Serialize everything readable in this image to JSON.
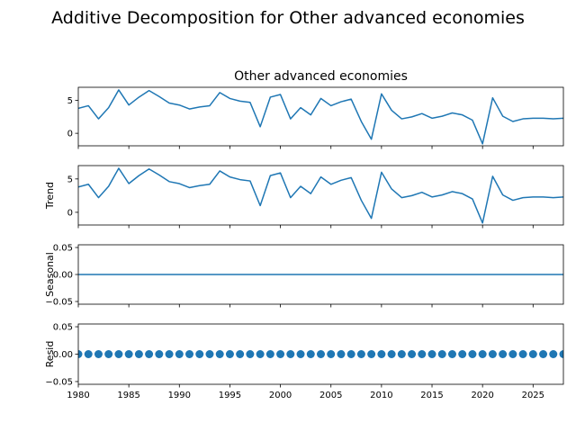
{
  "chart_data": {
    "type": "line",
    "title": "Additive Decomposition for Other advanced economies",
    "xlim": [
      1980,
      2028
    ],
    "x_ticks": [
      1980,
      1985,
      1990,
      1995,
      2000,
      2005,
      2010,
      2015,
      2020,
      2025
    ],
    "x": [
      1980,
      1981,
      1982,
      1983,
      1984,
      1985,
      1986,
      1987,
      1988,
      1989,
      1990,
      1991,
      1992,
      1993,
      1994,
      1995,
      1996,
      1997,
      1998,
      1999,
      2000,
      2001,
      2002,
      2003,
      2004,
      2005,
      2006,
      2007,
      2008,
      2009,
      2010,
      2011,
      2012,
      2013,
      2014,
      2015,
      2016,
      2017,
      2018,
      2019,
      2020,
      2021,
      2022,
      2023,
      2024,
      2025,
      2026,
      2027,
      2028
    ],
    "color": "#1f77b4",
    "panels": [
      {
        "title": "Other advanced economies",
        "ylabel": "",
        "ylim": [
          -1.9,
          7.0
        ],
        "y_ticks": [
          0,
          5
        ],
        "y_tick_labels": [
          "0",
          "5"
        ],
        "style": "line",
        "values": [
          3.8,
          4.2,
          2.2,
          3.9,
          6.6,
          4.3,
          5.5,
          6.5,
          5.6,
          4.6,
          4.3,
          3.7,
          4.0,
          4.2,
          6.2,
          5.3,
          4.9,
          4.7,
          1.0,
          5.5,
          5.9,
          2.2,
          3.9,
          2.8,
          5.3,
          4.2,
          4.8,
          5.2,
          1.8,
          -0.9,
          6.0,
          3.5,
          2.2,
          2.5,
          3.0,
          2.3,
          2.6,
          3.1,
          2.8,
          2.0,
          -1.6,
          5.4,
          2.6,
          1.8,
          2.2,
          2.3,
          2.3,
          2.2,
          2.3
        ]
      },
      {
        "title": "",
        "ylabel": "Trend",
        "ylim": [
          -1.9,
          7.0
        ],
        "y_ticks": [
          0,
          5
        ],
        "y_tick_labels": [
          "0",
          "5"
        ],
        "style": "line",
        "values": [
          3.8,
          4.2,
          2.2,
          3.9,
          6.6,
          4.3,
          5.5,
          6.5,
          5.6,
          4.6,
          4.3,
          3.7,
          4.0,
          4.2,
          6.2,
          5.3,
          4.9,
          4.7,
          1.0,
          5.5,
          5.9,
          2.2,
          3.9,
          2.8,
          5.3,
          4.2,
          4.8,
          5.2,
          1.8,
          -0.9,
          6.0,
          3.5,
          2.2,
          2.5,
          3.0,
          2.3,
          2.6,
          3.1,
          2.8,
          2.0,
          -1.6,
          5.4,
          2.6,
          1.8,
          2.2,
          2.3,
          2.3,
          2.2,
          2.3
        ]
      },
      {
        "title": "",
        "ylabel": "Seasonal",
        "ylim": [
          -0.055,
          0.055
        ],
        "y_ticks": [
          -0.05,
          0.0,
          0.05
        ],
        "y_tick_labels": [
          "−0.05",
          "0.00",
          "0.05"
        ],
        "style": "line",
        "values": [
          0,
          0,
          0,
          0,
          0,
          0,
          0,
          0,
          0,
          0,
          0,
          0,
          0,
          0,
          0,
          0,
          0,
          0,
          0,
          0,
          0,
          0,
          0,
          0,
          0,
          0,
          0,
          0,
          0,
          0,
          0,
          0,
          0,
          0,
          0,
          0,
          0,
          0,
          0,
          0,
          0,
          0,
          0,
          0,
          0,
          0,
          0,
          0,
          0
        ]
      },
      {
        "title": "",
        "ylabel": "Resid",
        "ylim": [
          -0.055,
          0.055
        ],
        "y_ticks": [
          -0.05,
          0.0,
          0.05
        ],
        "y_tick_labels": [
          "−0.05",
          "0.00",
          "0.05"
        ],
        "style": "scatter",
        "values": [
          0,
          0,
          0,
          0,
          0,
          0,
          0,
          0,
          0,
          0,
          0,
          0,
          0,
          0,
          0,
          0,
          0,
          0,
          0,
          0,
          0,
          0,
          0,
          0,
          0,
          0,
          0,
          0,
          0,
          0,
          0,
          0,
          0,
          0,
          0,
          0,
          0,
          0,
          0,
          0,
          0,
          0,
          0,
          0,
          0,
          0,
          0,
          0,
          0
        ]
      }
    ]
  }
}
